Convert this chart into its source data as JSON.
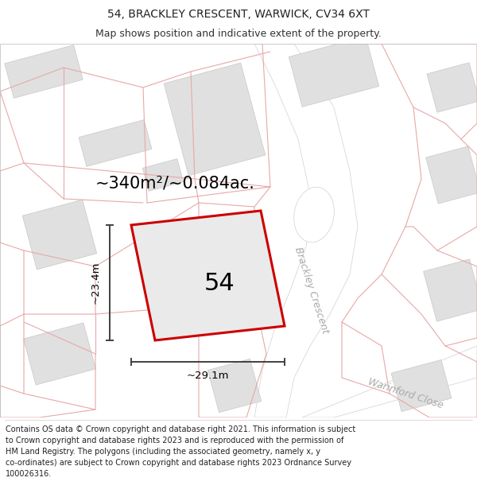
{
  "title_line1": "54, BRACKLEY CRESCENT, WARWICK, CV34 6XT",
  "title_line2": "Map shows position and indicative extent of the property.",
  "area_label": "~340m²/~0.084ac.",
  "number_label": "54",
  "width_label": "~29.1m",
  "height_label": "~23.4m",
  "street_label1": "Brackley Crescent",
  "street_label2": "Warinford Close",
  "footer_text": "Contains OS data © Crown copyright and database right 2021. This information is subject to Crown copyright and database rights 2023 and is reproduced with the permission of HM Land Registry. The polygons (including the associated geometry, namely x, y co-ordinates) are subject to Crown copyright and database rights 2023 Ordnance Survey 100026316.",
  "bg_color": "#f7f7f7",
  "building_fill": "#e0e0e0",
  "building_edge": "#c8c8c8",
  "plot_fill": "#e8e8e8",
  "plot_outline": "#cc0000",
  "dim_line_color": "#404040",
  "pink_line_color": "#e8a8a8",
  "road_fill": "#ffffff",
  "road_edge": "#d0d0d0",
  "title_fontsize": 10,
  "subtitle_fontsize": 9,
  "area_fontsize": 15,
  "number_fontsize": 22,
  "dim_fontsize": 9.5,
  "street_fontsize": 9,
  "footer_fontsize": 7
}
